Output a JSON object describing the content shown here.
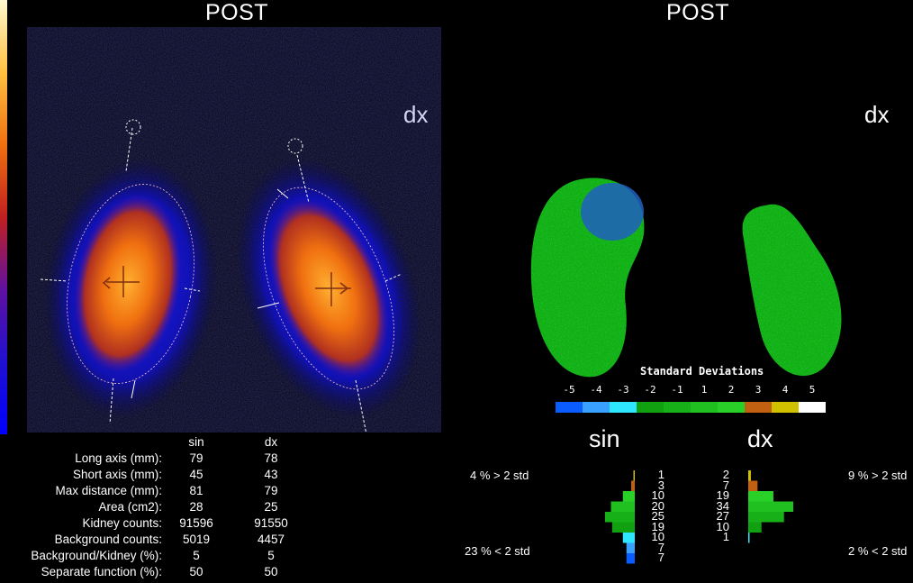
{
  "left_panel": {
    "title": "POST",
    "side_label": "dx"
  },
  "right_panel": {
    "title": "POST",
    "side_label": "dx"
  },
  "colors": {
    "sd_scale": [
      "#0a5cff",
      "#3aa0ff",
      "#2ee6ff",
      "#10a010",
      "#18b018",
      "#20c020",
      "#28d028",
      "#c06010",
      "#d0c000",
      "#ffffff"
    ]
  },
  "sd_legend": {
    "title": "Standard Deviations",
    "ticks": [
      "-5",
      "-4",
      "-3",
      "-2",
      "-1",
      "1",
      "2",
      "3",
      "4",
      "5"
    ]
  },
  "stats": {
    "col_sin": "sin",
    "col_dx": "dx",
    "rows": [
      {
        "label": "Long axis (mm):",
        "sin": "79",
        "dx": "78"
      },
      {
        "label": "Short axis (mm):",
        "sin": "45",
        "dx": "43"
      },
      {
        "label": "Max distance (mm):",
        "sin": "81",
        "dx": "79"
      },
      {
        "label": "Area (cm2):",
        "sin": "28",
        "dx": "25"
      },
      {
        "label": "Kidney counts:",
        "sin": "91596",
        "dx": "91550"
      },
      {
        "label": "Background counts:",
        "sin": "5019",
        "dx": "4457"
      },
      {
        "label": "Background/Kidney (%):",
        "sin": "5",
        "dx": "5"
      },
      {
        "label": "Separate function (%):",
        "sin": "50",
        "dx": "50"
      }
    ]
  },
  "histograms": {
    "sin": {
      "label": "sin",
      "above": "4 % > 2 std",
      "below": "23 % < 2 std",
      "counts": [
        "1",
        "3",
        "10",
        "20",
        "25",
        "19",
        "10",
        "7",
        "7"
      ]
    },
    "dx": {
      "label": "dx",
      "above": "9 % > 2 std",
      "below": "2 % < 2 std",
      "counts": [
        "2",
        "7",
        "19",
        "34",
        "27",
        "10",
        "1"
      ]
    }
  }
}
